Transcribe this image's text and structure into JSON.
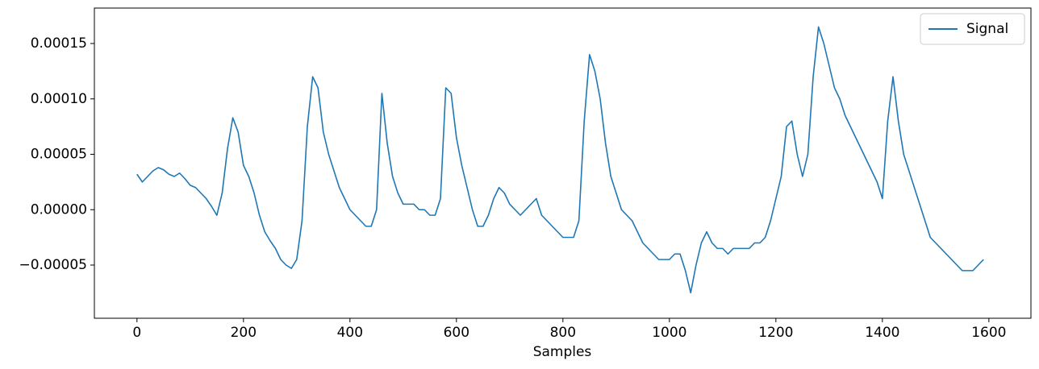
{
  "chart_data": {
    "type": "line",
    "xlabel": "Samples",
    "x": [
      0,
      10,
      20,
      30,
      40,
      50,
      60,
      70,
      80,
      90,
      100,
      110,
      120,
      130,
      140,
      150,
      160,
      170,
      180,
      190,
      200,
      210,
      220,
      230,
      240,
      250,
      260,
      270,
      280,
      290,
      300,
      310,
      320,
      330,
      340,
      350,
      360,
      370,
      380,
      390,
      400,
      410,
      420,
      430,
      440,
      450,
      460,
      470,
      480,
      490,
      500,
      510,
      520,
      530,
      540,
      550,
      560,
      570,
      580,
      590,
      600,
      610,
      620,
      630,
      640,
      650,
      660,
      670,
      680,
      690,
      700,
      710,
      720,
      730,
      740,
      750,
      760,
      770,
      780,
      790,
      800,
      810,
      820,
      830,
      840,
      850,
      860,
      870,
      880,
      890,
      900,
      910,
      920,
      930,
      940,
      950,
      960,
      970,
      980,
      990,
      1000,
      1010,
      1020,
      1030,
      1040,
      1050,
      1060,
      1070,
      1080,
      1090,
      1100,
      1110,
      1120,
      1130,
      1140,
      1150,
      1160,
      1170,
      1180,
      1190,
      1200,
      1210,
      1220,
      1230,
      1240,
      1250,
      1260,
      1270,
      1280,
      1290,
      1300,
      1310,
      1320,
      1330,
      1340,
      1350,
      1360,
      1370,
      1380,
      1390,
      1400,
      1410,
      1420,
      1430,
      1440,
      1450,
      1460,
      1470,
      1480,
      1490,
      1500,
      1510,
      1520,
      1530,
      1540,
      1550,
      1560,
      1570,
      1580,
      1590
    ],
    "series": [
      {
        "name": "Signal",
        "color": "#1f77b4",
        "values": [
          3.2e-05,
          2.5e-05,
          3e-05,
          3.5e-05,
          3.8e-05,
          3.6e-05,
          3.2e-05,
          3e-05,
          3.3e-05,
          2.8e-05,
          2.2e-05,
          2e-05,
          1.5e-05,
          1e-05,
          3e-06,
          -5e-06,
          1.5e-05,
          5.5e-05,
          8.3e-05,
          7e-05,
          4e-05,
          3e-05,
          1.5e-05,
          -5e-06,
          -2e-05,
          -2.8e-05,
          -3.5e-05,
          -4.5e-05,
          -5e-05,
          -5.3e-05,
          -4.5e-05,
          -1e-05,
          7.5e-05,
          0.00012,
          0.00011,
          7e-05,
          5e-05,
          3.5e-05,
          2e-05,
          1e-05,
          0.0,
          -5e-06,
          -1e-05,
          -1.5e-05,
          -1.5e-05,
          0.0,
          0.000105,
          6e-05,
          3e-05,
          1.5e-05,
          5e-06,
          5e-06,
          5e-06,
          0.0,
          0.0,
          -5e-06,
          -5e-06,
          1e-05,
          0.00011,
          0.000105,
          6.5e-05,
          4e-05,
          2e-05,
          0.0,
          -1.5e-05,
          -1.5e-05,
          -5e-06,
          1e-05,
          2e-05,
          1.5e-05,
          5e-06,
          0.0,
          -5e-06,
          0.0,
          5e-06,
          1e-05,
          -5e-06,
          -1e-05,
          -1.5e-05,
          -2e-05,
          -2.5e-05,
          -2.5e-05,
          -2.5e-05,
          -1e-05,
          8e-05,
          0.00014,
          0.000125,
          0.0001,
          6e-05,
          3e-05,
          1.5e-05,
          0.0,
          -5e-06,
          -1e-05,
          -2e-05,
          -3e-05,
          -3.5e-05,
          -4e-05,
          -4.5e-05,
          -4.5e-05,
          -4.5e-05,
          -4e-05,
          -4e-05,
          -5.5e-05,
          -7.5e-05,
          -5e-05,
          -3e-05,
          -2e-05,
          -3e-05,
          -3.5e-05,
          -3.5e-05,
          -4e-05,
          -3.5e-05,
          -3.5e-05,
          -3.5e-05,
          -3.5e-05,
          -3e-05,
          -3e-05,
          -2.5e-05,
          -1e-05,
          1e-05,
          3e-05,
          7.5e-05,
          8e-05,
          5e-05,
          3e-05,
          5e-05,
          0.00012,
          0.000165,
          0.00015,
          0.00013,
          0.00011,
          0.0001,
          8.5e-05,
          7.5e-05,
          6.5e-05,
          5.5e-05,
          4.5e-05,
          3.5e-05,
          2.5e-05,
          1e-05,
          8e-05,
          0.00012,
          8e-05,
          5e-05,
          3.5e-05,
          2e-05,
          5e-06,
          -1e-05,
          -2.5e-05,
          -3e-05,
          -3.5e-05,
          -4e-05,
          -4.5e-05,
          -5e-05,
          -5.5e-05,
          -5.5e-05,
          -5.5e-05,
          -5e-05,
          -4.5e-05
        ]
      }
    ],
    "xlim": [
      -80,
      1679
    ],
    "xticks": [
      0,
      200,
      400,
      600,
      800,
      1000,
      1200,
      1400,
      1600
    ],
    "ylim": [
      -9.8e-05,
      0.000182
    ],
    "yticks": [
      {
        "value": -5e-05,
        "label": "−0.00005"
      },
      {
        "value": 0,
        "label": "0.00000"
      },
      {
        "value": 5e-05,
        "label": "0.00005"
      },
      {
        "value": 0.0001,
        "label": "0.00010"
      },
      {
        "value": 0.00015,
        "label": "0.00015"
      }
    ],
    "legend": "upper right"
  }
}
